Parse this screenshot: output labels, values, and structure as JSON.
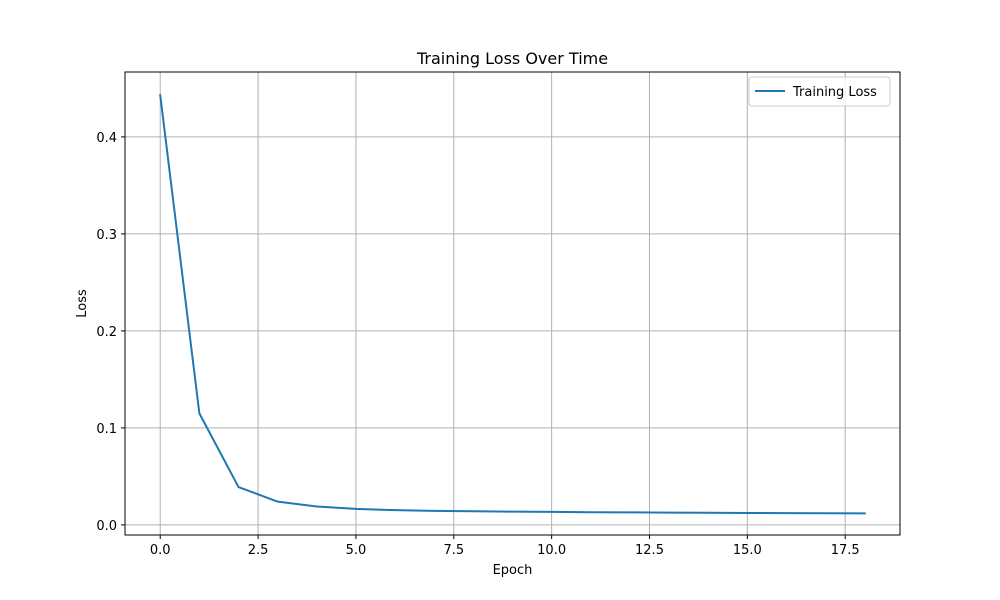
{
  "chart_data": {
    "type": "line",
    "title": "Training Loss Over Time",
    "xlabel": "Epoch",
    "ylabel": "Loss",
    "xlim": [
      -0.9,
      18.9
    ],
    "ylim": [
      -0.0104,
      0.4669
    ],
    "xticks": [
      0.0,
      2.5,
      5.0,
      7.5,
      10.0,
      12.5,
      15.0,
      17.5
    ],
    "xtick_labels": [
      "0.0",
      "2.5",
      "5.0",
      "7.5",
      "10.0",
      "12.5",
      "15.0",
      "17.5"
    ],
    "yticks": [
      0.0,
      0.1,
      0.2,
      0.3,
      0.4
    ],
    "ytick_labels": [
      "0.0",
      "0.1",
      "0.2",
      "0.3",
      "0.4"
    ],
    "grid": true,
    "legend_position": "top-right",
    "series": [
      {
        "name": "Training Loss",
        "color": "#1f77b4",
        "x": [
          0,
          1,
          2,
          3,
          4,
          5,
          6,
          7,
          8,
          9,
          10,
          11,
          12,
          13,
          14,
          15,
          16,
          17,
          18
        ],
        "values": [
          0.443,
          0.115,
          0.039,
          0.024,
          0.019,
          0.0165,
          0.0152,
          0.0145,
          0.0141,
          0.0137,
          0.0134,
          0.0131,
          0.0129,
          0.0127,
          0.0125,
          0.0123,
          0.0121,
          0.012,
          0.0119
        ]
      }
    ]
  }
}
